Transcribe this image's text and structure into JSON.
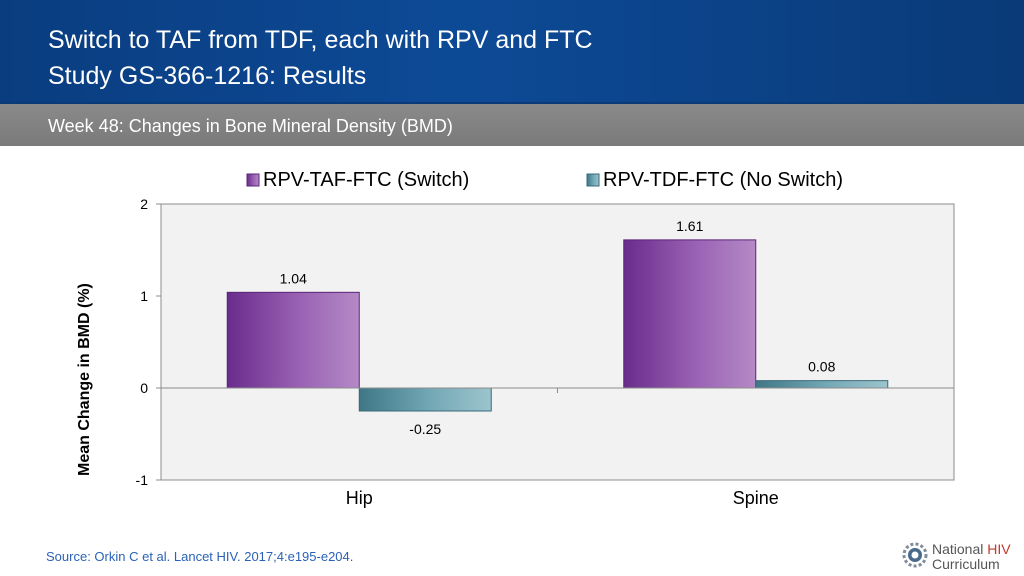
{
  "header": {
    "title_line1": "Switch to TAF from TDF, each with RPV and FTC",
    "title_line2": "Study GS-366-1216: Results"
  },
  "subheader": {
    "text": "Week 48: Changes in Bone Mineral Density (BMD)"
  },
  "chart_data": {
    "type": "bar",
    "categories": [
      "Hip",
      "Spine"
    ],
    "series": [
      {
        "name": "RPV-TAF-FTC (Switch)",
        "values": [
          1.04,
          1.61
        ],
        "labels": [
          "1.04",
          "1.61"
        ],
        "color": "#7a3d98"
      },
      {
        "name": "RPV-TDF-FTC (No Switch)",
        "values": [
          -0.25,
          0.08
        ],
        "labels": [
          "-0.25",
          "0.08"
        ],
        "color": "#4f8a99"
      }
    ],
    "ylabel": "Mean Change in BMD (%)",
    "ylim": [
      -1,
      2
    ],
    "yticks": [
      2,
      1,
      0,
      -1
    ],
    "ytick_labels": [
      "2",
      "1",
      "0",
      "-1"
    ],
    "legend_position": "top",
    "grid": false
  },
  "footer": {
    "source": "Source: Orkin C et al. Lancet HIV. 2017;4:e195-e204.",
    "logo_word1": "National",
    "logo_word2": "HIV",
    "logo_word3": "Curriculum",
    "logo_accent": "#c0392b"
  }
}
